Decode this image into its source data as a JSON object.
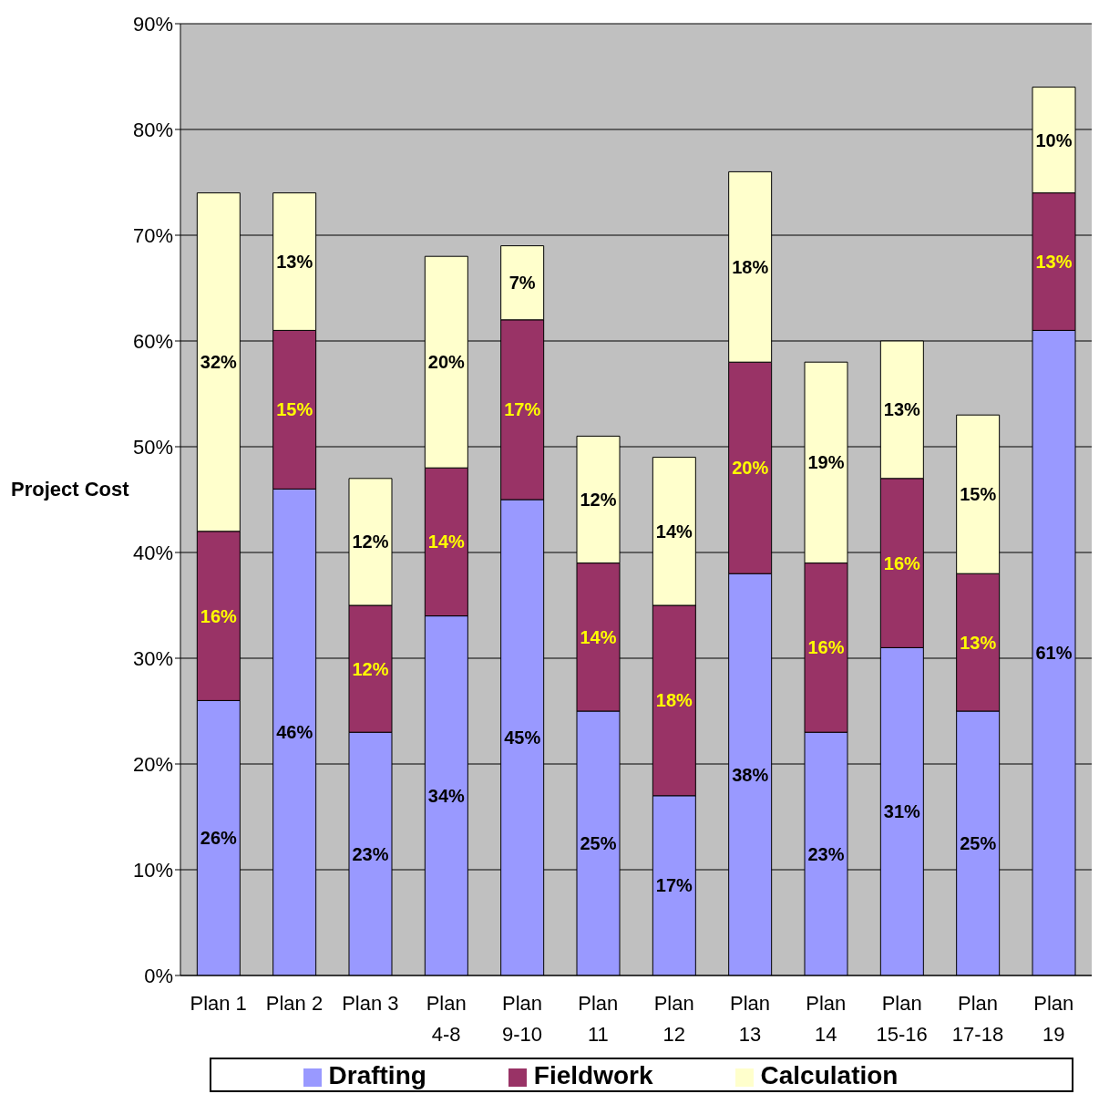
{
  "chart_data": {
    "type": "bar",
    "stacked": true,
    "ylabel": "Project Cost",
    "categories": [
      "Plan 1",
      "Plan 2",
      "Plan 3",
      "Plan 4-8",
      "Plan 9-10",
      "Plan 11",
      "Plan 12",
      "Plan 13",
      "Plan 14",
      "Plan 15-16",
      "Plan 17-18",
      "Plan 19"
    ],
    "series": [
      {
        "name": "Drafting",
        "color": "#9999ff",
        "values": [
          26,
          46,
          23,
          34,
          45,
          25,
          17,
          38,
          23,
          31,
          25,
          61
        ],
        "value_labels": [
          "26%",
          "46%",
          "23%",
          "34%",
          "45%",
          "25%",
          "17%",
          "38%",
          "23%",
          "31%",
          "25%",
          "61%"
        ]
      },
      {
        "name": "Fieldwork",
        "color": "#993366",
        "values": [
          16,
          15,
          12,
          14,
          17,
          14,
          18,
          20,
          16,
          16,
          13,
          13
        ],
        "value_labels": [
          "16%",
          "15%",
          "12%",
          "14%",
          "17%",
          "14%",
          "18%",
          "20%",
          "16%",
          "16%",
          "13%",
          "13%"
        ]
      },
      {
        "name": "Calculation",
        "color": "#ffffcc",
        "values": [
          32,
          13,
          12,
          20,
          7,
          12,
          14,
          18,
          19,
          13,
          15,
          10
        ],
        "value_labels": [
          "32%",
          "13%",
          "12%",
          "20%",
          "7%",
          "12%",
          "14%",
          "18%",
          "19%",
          "13%",
          "15%",
          "10%"
        ]
      }
    ],
    "ylim": [
      0,
      90
    ],
    "yticks": [
      {
        "value": 0,
        "label": "0%"
      },
      {
        "value": 10,
        "label": "10%"
      },
      {
        "value": 20,
        "label": "20%"
      },
      {
        "value": 30,
        "label": "30%"
      },
      {
        "value": 40,
        "label": "40%"
      },
      {
        "value": 50,
        "label": "50%"
      },
      {
        "value": 60,
        "label": "60%"
      },
      {
        "value": 70,
        "label": "70%"
      },
      {
        "value": 80,
        "label": "80%"
      },
      {
        "value": 90,
        "label": "90%"
      }
    ],
    "grid": "y",
    "legend": "bottom"
  }
}
